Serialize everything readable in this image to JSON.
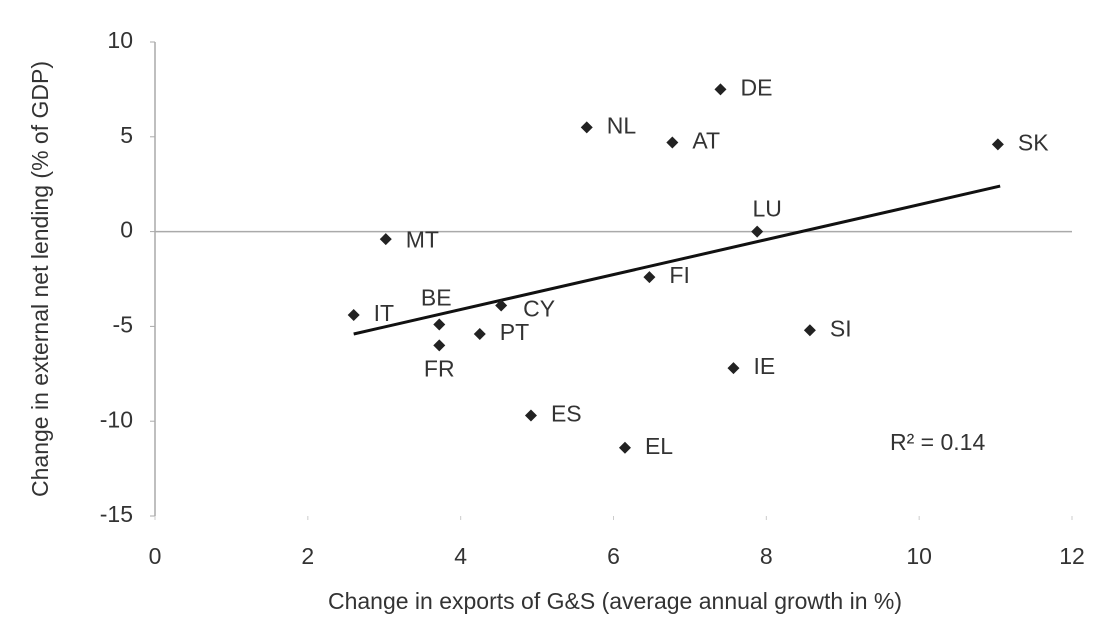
{
  "chart_data": {
    "type": "scatter",
    "xlabel": "Change in exports of G&S (average annual growth in %)",
    "ylabel": "Change in external net lending (% of GDP)",
    "labels": [
      "DE",
      "NL",
      "AT",
      "SK",
      "LU",
      "MT",
      "FI",
      "IT",
      "CY",
      "BE",
      "PT",
      "FR",
      "SI",
      "IE",
      "ES",
      "EL"
    ],
    "x": [
      7.4,
      5.65,
      6.77,
      11.03,
      7.88,
      3.02,
      6.47,
      2.6,
      4.53,
      3.72,
      4.25,
      3.72,
      8.57,
      7.57,
      4.92,
      6.15
    ],
    "y": [
      7.5,
      5.5,
      4.7,
      4.6,
      0.0,
      -0.4,
      -2.4,
      -4.4,
      -3.9,
      -4.9,
      -5.4,
      -6.0,
      -5.2,
      -7.2,
      -9.7,
      -11.4
    ],
    "color": "#222222",
    "trendline": {
      "x": [
        2.6,
        11.06
      ],
      "y": [
        -5.4,
        2.4
      ],
      "color": "#111111"
    },
    "annotation": "R² = 0.14",
    "xlim": [
      0,
      12
    ],
    "xticks": [
      0,
      2,
      4,
      6,
      8,
      10,
      12
    ],
    "ylim": [
      -15,
      10
    ],
    "yticks": [
      -15,
      -10,
      -5,
      0,
      5,
      10
    ]
  }
}
